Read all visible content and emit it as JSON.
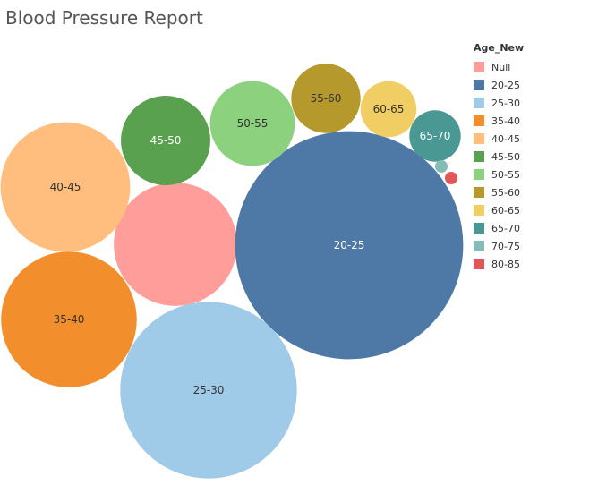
{
  "title": "Blood Pressure Report",
  "chart_data": {
    "type": "bubble",
    "title": "Blood Pressure Report",
    "legend_title": "Age_New",
    "legend_position": "right",
    "series": [
      {
        "name": "Null",
        "value": 19,
        "color": "#FF9D9A",
        "label": ""
      },
      {
        "name": "20-25",
        "value": 65,
        "color": "#4E79A7",
        "label": "20-25"
      },
      {
        "name": "25-30",
        "value": 39,
        "color": "#A0CBE8",
        "label": "25-30"
      },
      {
        "name": "35-40",
        "value": 23,
        "color": "#F28E2B",
        "label": "35-40"
      },
      {
        "name": "40-45",
        "value": 21,
        "color": "#FFBE7D",
        "label": "40-45"
      },
      {
        "name": "45-50",
        "value": 10,
        "color": "#59A14F",
        "label": "45-50"
      },
      {
        "name": "50-55",
        "value": 9,
        "color": "#8CD17D",
        "label": "50-55"
      },
      {
        "name": "55-60",
        "value": 6,
        "color": "#B6992D",
        "label": "55-60"
      },
      {
        "name": "60-65",
        "value": 3.9,
        "color": "#F1CE63",
        "label": "60-65"
      },
      {
        "name": "65-70",
        "value": 3.3,
        "color": "#499894",
        "label": "65-70"
      },
      {
        "name": "70-75",
        "value": 0.15,
        "color": "#86BCB6",
        "label": ""
      },
      {
        "name": "80-85",
        "value": 0.15,
        "color": "#E15759",
        "label": ""
      }
    ]
  }
}
